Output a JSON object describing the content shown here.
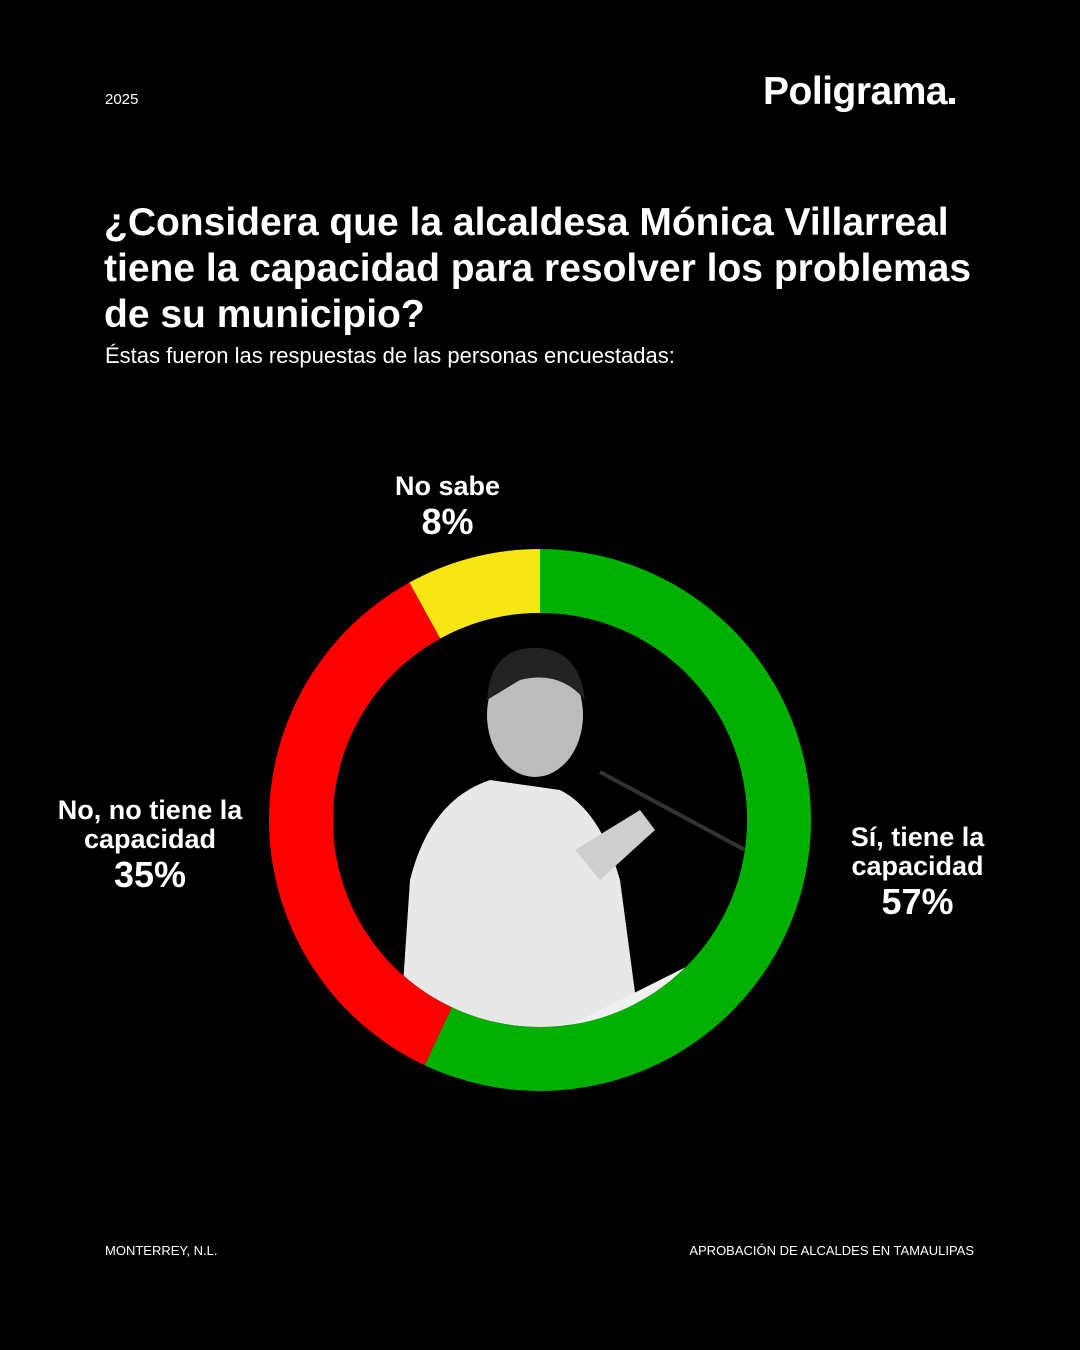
{
  "header": {
    "year": "2025",
    "brand": "Poligrama"
  },
  "title": "¿Considera que la alcaldesa Mónica Villarreal tiene la capacidad para resolver los problemas de su municipio?",
  "subtitle": "Éstas fueron las respuestas de las personas encuestadas:",
  "chart_data": {
    "type": "pie",
    "donut": true,
    "start": "top, clockwise",
    "slices": [
      {
        "label": "Sí, tiene la capacidad",
        "value": 57,
        "display": "57%",
        "color": "#00b000"
      },
      {
        "label": "No, no tiene la capacidad",
        "value": 35,
        "display": "35%",
        "color": "#ff0000"
      },
      {
        "label": "No sabe",
        "value": 8,
        "display": "8%",
        "color": "#f7e613"
      }
    ]
  },
  "footer": {
    "left": "MONTERREY, N.L.",
    "right": "APROBACIÓN DE ALCALDES EN TAMAULIPAS"
  }
}
